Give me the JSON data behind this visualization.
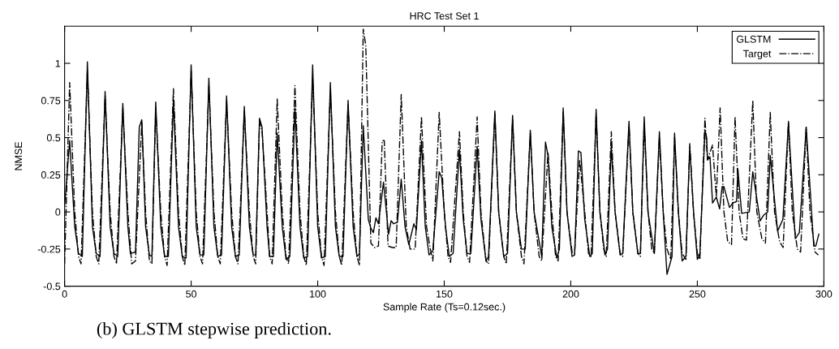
{
  "chart_data": {
    "type": "line",
    "title": "HRC Test Set 1",
    "xlabel": "Sample Rate (Ts=0.12sec.)",
    "ylabel": "NMSE",
    "xlim": [
      0,
      300
    ],
    "xticks": [
      0,
      50,
      100,
      150,
      200,
      250,
      300
    ],
    "ylim": [
      -0.5,
      1.25
    ],
    "yticks": [
      -0.5,
      -0.25,
      0,
      0.25,
      0.5,
      0.75,
      1
    ],
    "grid": false,
    "legend": "top right",
    "marker": "none",
    "annotations": [
      "(b) GLSTM stepwise prediction."
    ],
    "series": [
      {
        "name": "GLSTM",
        "color": "#000000",
        "line_style": "solid",
        "x": [
          0,
          2,
          4,
          5.5,
          7,
          9,
          11,
          12.5,
          14,
          16,
          18,
          19.5,
          21,
          23,
          25,
          26,
          28,
          29.5,
          30.5,
          32,
          33.5,
          34.5,
          36,
          38,
          39.5,
          41,
          43,
          45,
          46.5,
          48,
          50,
          52,
          53.5,
          55,
          57,
          59,
          60.5,
          62,
          64,
          66,
          67.5,
          69,
          71,
          73,
          74.5,
          75.5,
          77,
          78,
          80,
          81,
          82.5,
          84,
          86,
          87.5,
          89,
          91,
          93,
          94.5,
          96,
          98,
          100,
          101.5,
          103,
          105,
          107,
          108.5,
          110,
          112,
          114,
          115.5,
          116.5,
          118,
          120,
          121,
          122,
          123,
          124,
          126,
          128,
          129,
          130,
          131.5,
          133,
          134.5,
          136,
          138,
          139,
          141,
          142.5,
          144,
          145.5,
          148,
          149,
          150.5,
          152,
          153.5,
          156,
          157.5,
          159,
          160.5,
          163,
          164.5,
          166.5,
          167.5,
          170,
          171.5,
          173.5,
          175,
          177,
          178.5,
          180.5,
          182,
          184,
          185.5,
          187.5,
          188.5,
          190,
          191,
          192.5,
          194.5,
          195.5,
          197,
          198.5,
          200.5,
          201.5,
          203,
          204,
          205.5,
          207.5,
          208.5,
          210,
          211.5,
          213.5,
          214.5,
          216,
          217.5,
          219.5,
          220.5,
          223,
          224.5,
          226.5,
          227.5,
          229,
          230.5,
          232,
          233,
          235,
          236.5,
          238,
          240,
          241,
          242.5,
          244,
          245.5,
          247,
          248.5,
          250,
          251,
          253,
          253.7,
          254,
          255,
          256,
          257.5,
          258.8,
          259.8,
          260.5,
          262.7,
          264,
          265.5,
          266,
          267.5,
          270.5,
          271.9,
          274.8,
          276.3,
          277.8,
          278.8,
          281.7,
          283.8,
          286,
          288.7,
          290.3,
          293,
          296,
          296.8,
          298
        ],
        "values": [
          0.04,
          0.48,
          -0.1,
          -0.28,
          -0.3,
          1.01,
          -0.1,
          -0.28,
          -0.3,
          0.81,
          -0.1,
          -0.28,
          -0.3,
          0.73,
          -0.1,
          -0.28,
          -0.27,
          0.57,
          0.62,
          -0.1,
          -0.29,
          -0.3,
          0.74,
          -0.1,
          -0.3,
          -0.3,
          0.75,
          -0.1,
          -0.3,
          -0.31,
          0.99,
          -0.1,
          -0.29,
          -0.29,
          0.9,
          -0.1,
          -0.3,
          -0.29,
          0.78,
          -0.1,
          -0.3,
          -0.29,
          0.71,
          -0.1,
          -0.29,
          -0.29,
          0.63,
          0.57,
          -0.1,
          -0.3,
          -0.3,
          0.53,
          -0.1,
          -0.32,
          -0.3,
          0.7,
          -0.1,
          -0.31,
          -0.3,
          0.99,
          -0.1,
          -0.31,
          -0.3,
          0.87,
          -0.1,
          -0.3,
          -0.3,
          0.75,
          -0.1,
          -0.3,
          -0.28,
          0.58,
          -0.05,
          -0.11,
          -0.14,
          -0.04,
          -0.08,
          0.2,
          -0.15,
          -0.06,
          -0.08,
          -0.07,
          0.22,
          -0.1,
          -0.22,
          -0.08,
          -0.12,
          0.48,
          -0.1,
          -0.29,
          -0.26,
          0.27,
          0.23,
          -0.1,
          -0.3,
          -0.28,
          0.42,
          -0.05,
          -0.28,
          -0.28,
          0.44,
          -0.05,
          -0.33,
          -0.3,
          0.68,
          0.0,
          -0.3,
          -0.28,
          0.65,
          0.0,
          -0.25,
          -0.25,
          0.55,
          0.0,
          -0.2,
          -0.3,
          0.47,
          0.38,
          -0.1,
          -0.31,
          -0.25,
          0.7,
          0.0,
          -0.3,
          -0.29,
          0.41,
          0.4,
          -0.05,
          -0.3,
          -0.28,
          0.69,
          0.0,
          -0.29,
          -0.25,
          0.44,
          0.0,
          -0.29,
          -0.28,
          0.61,
          0.0,
          -0.28,
          -0.28,
          0.64,
          0.0,
          -0.17,
          -0.28,
          0.54,
          0.0,
          -0.42,
          -0.3,
          0.53,
          0.0,
          -0.33,
          -0.3,
          0.44,
          0.0,
          -0.32,
          -0.28,
          0.55,
          0.5,
          0.35,
          0.37,
          0.06,
          0.1,
          0.02,
          0.17,
          0.17,
          0.03,
          0.06,
          0.07,
          0.29,
          -0.01,
          0.0,
          0.27,
          -0.06,
          -0.02,
          0.0,
          0.38,
          -0.13,
          -0.05,
          0.6,
          -0.18,
          -0.14,
          0.57,
          -0.23,
          -0.23,
          -0.15
        ]
      },
      {
        "name": "Target",
        "color": "#000000",
        "line_style": "dashdot",
        "x": [
          0,
          2,
          4,
          5.5,
          6.5,
          9,
          11,
          12.5,
          13.5,
          16,
          18,
          19.5,
          20.5,
          23,
          25,
          26.5,
          28,
          30.5,
          32,
          33.5,
          34.5,
          36,
          38,
          39.5,
          40.5,
          43,
          45,
          46.5,
          47.5,
          50,
          52,
          53.5,
          54.5,
          57,
          59,
          60.5,
          61.5,
          64,
          66,
          67.5,
          68.5,
          71,
          73,
          74.5,
          75.5,
          77,
          78,
          80,
          81,
          82,
          84,
          86,
          87.5,
          88.5,
          91,
          93,
          94.5,
          95.5,
          98,
          100,
          101.5,
          102.5,
          105,
          107,
          108.5,
          109.5,
          112,
          114,
          115.5,
          116.5,
          118,
          119,
          121,
          122.5,
          124,
          125.5,
          126.3,
          127.8,
          129.5,
          131,
          133,
          135,
          136.5,
          138.5,
          141,
          143,
          144.5,
          145.5,
          148,
          150,
          151.5,
          152.5,
          156,
          157.5,
          159,
          160,
          163,
          164.5,
          166.5,
          167.5,
          170,
          171.5,
          173.5,
          174.5,
          177,
          178.5,
          180.5,
          181.5,
          184,
          185.5,
          187.5,
          188.5,
          191,
          192.5,
          194,
          195,
          197,
          198.5,
          200.5,
          201.5,
          203.5,
          205.5,
          207,
          208,
          210,
          211.5,
          213,
          214,
          216,
          217.5,
          219.5,
          220.5,
          223,
          224.5,
          226.5,
          227.5,
          229,
          230.5,
          232,
          233,
          235,
          236.5,
          238,
          239.5,
          241,
          242.5,
          244,
          245.5,
          247,
          248.5,
          250,
          251,
          253,
          254,
          256,
          257.5,
          259,
          260.5,
          262,
          263.5,
          264.9,
          266.5,
          268,
          269.4,
          271.9,
          273.5,
          275.5,
          276.9,
          278.8,
          280.5,
          282.5,
          283.9,
          286,
          287.5,
          289.5,
          290.8,
          293,
          294.5,
          296.5,
          297.8
        ],
        "values": [
          -0.35,
          0.87,
          0.0,
          -0.3,
          -0.35,
          0.95,
          0.0,
          -0.3,
          -0.35,
          0.78,
          0.0,
          -0.3,
          -0.35,
          0.7,
          0.0,
          -0.35,
          -0.33,
          0.6,
          0.0,
          -0.33,
          -0.35,
          0.7,
          0.0,
          -0.3,
          -0.36,
          0.83,
          0.0,
          -0.3,
          -0.36,
          0.95,
          0.0,
          -0.3,
          -0.35,
          0.85,
          0.0,
          -0.3,
          -0.35,
          0.75,
          0.0,
          -0.3,
          -0.35,
          0.68,
          0.0,
          -0.3,
          -0.35,
          0.6,
          0.55,
          0.0,
          -0.3,
          -0.35,
          0.76,
          0.0,
          -0.3,
          -0.35,
          0.85,
          0.0,
          -0.3,
          -0.36,
          0.9,
          0.0,
          -0.3,
          -0.36,
          0.82,
          0.0,
          -0.3,
          -0.36,
          0.72,
          0.0,
          -0.3,
          -0.36,
          1.23,
          1.12,
          -0.21,
          -0.24,
          -0.23,
          0.48,
          0.48,
          -0.23,
          -0.24,
          -0.24,
          0.79,
          -0.1,
          -0.25,
          -0.25,
          0.64,
          -0.1,
          -0.25,
          -0.33,
          0.67,
          0.0,
          -0.3,
          -0.34,
          0.54,
          0.0,
          -0.3,
          -0.34,
          0.64,
          0.0,
          -0.33,
          -0.35,
          0.66,
          0.0,
          -0.3,
          -0.35,
          0.62,
          0.0,
          -0.3,
          -0.35,
          0.53,
          0.0,
          -0.3,
          -0.33,
          0.4,
          0.0,
          -0.3,
          -0.33,
          0.68,
          0.0,
          -0.27,
          -0.28,
          0.35,
          0.0,
          -0.28,
          -0.3,
          0.66,
          0.0,
          -0.25,
          -0.3,
          0.54,
          0.0,
          -0.28,
          -0.3,
          0.58,
          0.0,
          -0.28,
          -0.3,
          0.6,
          0.0,
          -0.25,
          -0.28,
          0.5,
          0.0,
          -0.25,
          -0.32,
          0.5,
          0.0,
          -0.28,
          -0.32,
          0.46,
          0.0,
          -0.28,
          -0.32,
          0.63,
          0.35,
          0.45,
          0.1,
          0.7,
          0.0,
          -0.2,
          -0.22,
          0.64,
          0.0,
          -0.18,
          -0.19,
          0.75,
          0.0,
          -0.18,
          -0.21,
          0.67,
          0.0,
          -0.2,
          -0.24,
          0.61,
          0.0,
          -0.25,
          -0.27,
          0.57,
          0.0,
          -0.27,
          -0.29
        ]
      }
    ]
  }
}
